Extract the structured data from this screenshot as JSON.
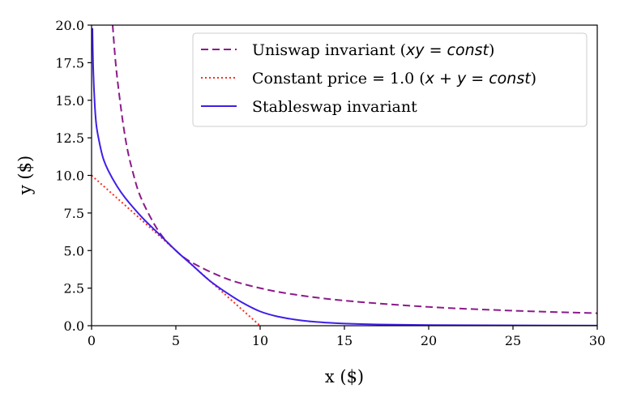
{
  "chart_data": {
    "type": "line",
    "xlabel": "x ($)",
    "ylabel": "y ($)",
    "xlim": [
      0,
      30
    ],
    "ylim": [
      0,
      20
    ],
    "xticks": [
      "0",
      "5",
      "10",
      "15",
      "20",
      "25",
      "30"
    ],
    "yticks": [
      "0.0",
      "2.5",
      "5.0",
      "7.5",
      "10.0",
      "12.5",
      "15.0",
      "17.5",
      "20.0"
    ],
    "grid": false,
    "legend_position": "top-right",
    "series": [
      {
        "name": "Uniswap invariant (xy = const)",
        "legend_prefix": "Uniswap invariant (",
        "legend_math": "xy = const",
        "legend_suffix": ")",
        "style": "dashed",
        "color": "#8b1a8b",
        "x": [
          1.25,
          1.5,
          2,
          2.5,
          3,
          4,
          5,
          6,
          8,
          10,
          12,
          15,
          20,
          25,
          30
        ],
        "y": [
          20.0,
          16.7,
          12.5,
          10.0,
          8.33,
          6.25,
          5.0,
          4.17,
          3.13,
          2.5,
          2.08,
          1.67,
          1.25,
          1.0,
          0.83
        ]
      },
      {
        "name": "Constant price = 1.0 (x + y = const)",
        "legend_prefix": "Constant price = 1.0 (",
        "legend_math": "x + y = const",
        "legend_suffix": ")",
        "style": "dotted",
        "color": "#ff2a1a",
        "x": [
          0,
          10
        ],
        "y": [
          10,
          0
        ]
      },
      {
        "name": "Stableswap invariant",
        "legend_prefix": "Stableswap invariant",
        "legend_math": "",
        "legend_suffix": "",
        "style": "solid",
        "color": "#3f1ee8",
        "x": [
          0.05,
          0.1,
          0.2,
          0.3,
          0.5,
          0.7,
          1.0,
          1.5,
          2,
          3,
          4,
          5,
          6,
          7,
          8,
          9,
          10,
          11,
          12,
          13,
          14,
          15,
          17,
          20,
          25,
          30
        ],
        "y": [
          19.8,
          17.0,
          14.5,
          13.2,
          12.0,
          11.1,
          10.3,
          9.3,
          8.5,
          7.2,
          6.1,
          5.0,
          4.0,
          3.0,
          2.2,
          1.5,
          0.95,
          0.62,
          0.42,
          0.28,
          0.2,
          0.14,
          0.08,
          0.04,
          0.02,
          0.01
        ]
      }
    ]
  }
}
